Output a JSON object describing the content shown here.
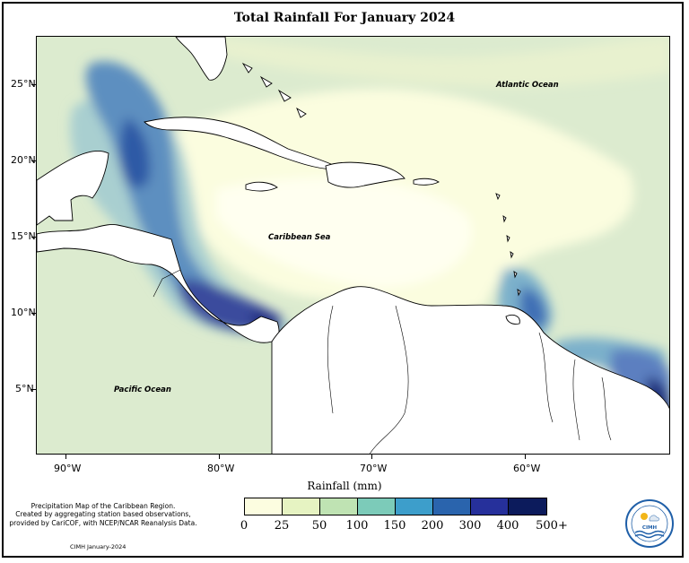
{
  "title": "Total Rainfall For January 2024",
  "map_labels": {
    "atlantic": "Atlantic Ocean",
    "caribbean": "Caribbean Sea",
    "pacific": "Pacific Ocean"
  },
  "y_ticks": [
    "25°N",
    "20°N",
    "15°N",
    "10°N",
    "5°N"
  ],
  "x_ticks": [
    "90°W",
    "80°W",
    "70°W",
    "60°W"
  ],
  "axis_title": "Rainfall (mm)",
  "legend": {
    "colors": [
      "#fcfde0",
      "#e6f3c2",
      "#bfe3b3",
      "#7ccbb9",
      "#3d9ecb",
      "#2a64ad",
      "#26309b",
      "#0c1b5c"
    ],
    "labels": [
      "0",
      "25",
      "50",
      "100",
      "150",
      "200",
      "300",
      "400",
      "500+"
    ]
  },
  "credit": {
    "line1": "Precipitation Map of the Caribbean Region.",
    "line2": "Created by aggregating station based observations,",
    "line3": "provided by CariCOF, with NCEP/NCAR Reanalysis Data.",
    "footer": "CIMH January-2024"
  },
  "logo": {
    "text": "CIMH"
  },
  "colors": {
    "land": "#ffffff",
    "coast": "#000000"
  }
}
